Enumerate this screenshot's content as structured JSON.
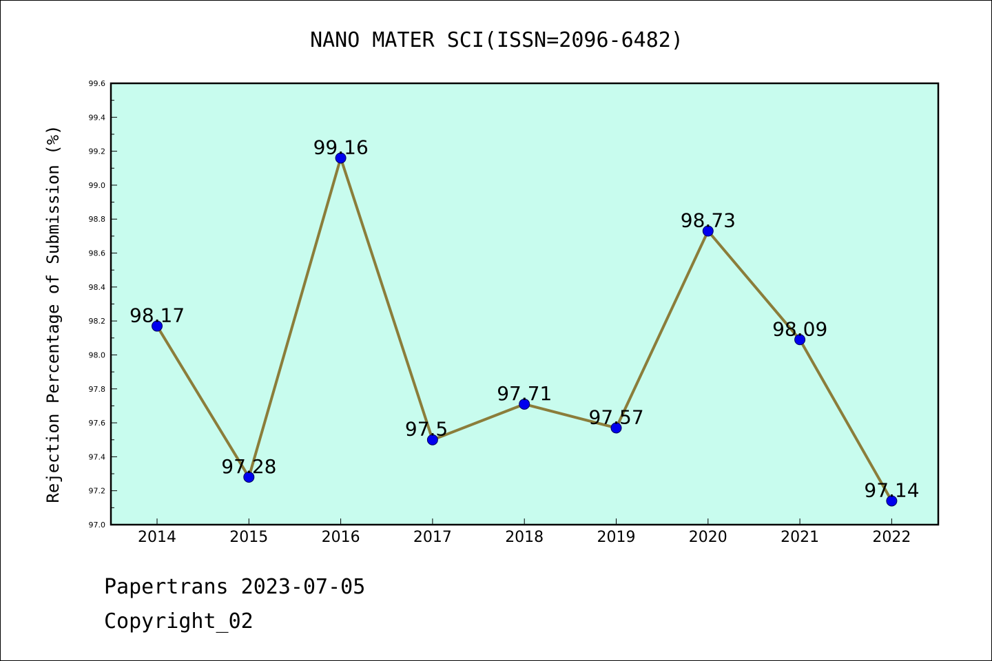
{
  "chart_data": {
    "type": "line",
    "title": "NANO MATER SCI(ISSN=2096-6482)",
    "xlabel": "",
    "ylabel": "Rejection Percentage of Submission (%)",
    "categories": [
      "2014",
      "2015",
      "2016",
      "2017",
      "2018",
      "2019",
      "2020",
      "2021",
      "2022"
    ],
    "series": [
      {
        "values": [
          98.17,
          97.28,
          99.16,
          97.5,
          97.71,
          97.57,
          98.73,
          98.09,
          97.14
        ]
      }
    ],
    "data_labels": [
      "98.17",
      "97.28",
      "99.16",
      "97.5",
      "97.71",
      "97.57",
      "98.73",
      "98.09",
      "97.14"
    ],
    "ylim": [
      97.0,
      99.6
    ],
    "yticks": [
      "97.0",
      "97.2",
      "97.4",
      "97.6",
      "97.8",
      "98.0",
      "98.2",
      "98.4",
      "98.6",
      "98.8",
      "99.0",
      "99.2",
      "99.4",
      "99.6"
    ],
    "grid": false,
    "legend": "none",
    "colors": {
      "plot_background": "#c8fcee",
      "line": "#8b7d3a",
      "marker": "#0000ee",
      "marker_edge": "#00005a"
    }
  },
  "footer": {
    "line1": "Papertrans 2023-07-05",
    "line2": "Copyright_02"
  }
}
